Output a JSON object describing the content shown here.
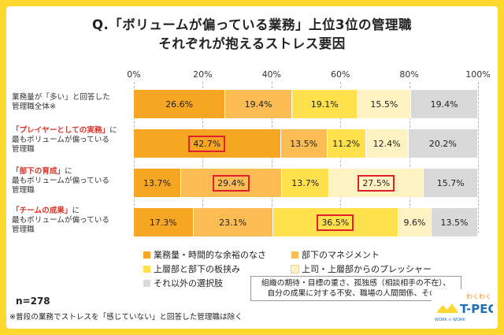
{
  "title": {
    "line1": "Q.「ボリュームが偏っている業務」上位3位の管理職",
    "line2": "それぞれが抱えるストレス要因"
  },
  "chart_data": {
    "type": "bar",
    "orientation": "horizontal-stacked-100",
    "x_ticks": [
      "0%",
      "20%",
      "40%",
      "60%",
      "80%",
      "100%"
    ],
    "xlim": [
      0,
      100
    ],
    "grid": true,
    "categories": [
      {
        "line1": "業務量が「多い」と回答した",
        "line2": "管理職全体※",
        "line3": ""
      },
      {
        "highlight": "「プレイヤーとしての実務」",
        "suffix": "に",
        "line2": "最もボリュームが偏っている",
        "line3": "管理職"
      },
      {
        "highlight": "「部下の育成」",
        "suffix": "に",
        "line2": "最もボリュームが偏っている",
        "line3": "管理職"
      },
      {
        "highlight": "「チームの成果」",
        "suffix": "に",
        "line2": "最もボリュームが偏っている",
        "line3": "管理職"
      }
    ],
    "series": [
      {
        "name": "業務量・時間的な余裕のなさ",
        "color": "#f6a623",
        "values": [
          26.6,
          42.7,
          13.7,
          17.3
        ]
      },
      {
        "name": "部下のマネジメント",
        "color": "#fbbd53",
        "values": [
          19.4,
          13.5,
          29.4,
          23.1
        ]
      },
      {
        "name": "上層部と部下の板挟み",
        "color": "#ffe14d",
        "values": [
          19.1,
          11.2,
          13.7,
          36.5
        ]
      },
      {
        "name": "上司・上層部からのプレッシャー",
        "color": "#fff3c4",
        "values": [
          15.5,
          12.4,
          27.5,
          9.6
        ]
      },
      {
        "name": "それ以外の選択肢",
        "color": "#d9d9d9",
        "values": [
          19.4,
          20.2,
          15.7,
          13.5
        ]
      }
    ],
    "value_labels": [
      [
        "26.6%",
        "19.4%",
        "19.1%",
        "15.5%",
        "19.4%"
      ],
      [
        "42.7%",
        "13.5%",
        "11.2%",
        "12.4%",
        "20.2%"
      ],
      [
        "13.7%",
        "29.4%",
        "13.7%",
        "27.5%",
        "15.7%"
      ],
      [
        "17.3%",
        "23.1%",
        "36.5%",
        "9.6%",
        "13.5%"
      ]
    ],
    "highlighted_cells": [
      [
        1,
        0
      ],
      [
        2,
        1
      ],
      [
        2,
        3
      ],
      [
        3,
        2
      ]
    ]
  },
  "legend_note": {
    "line1": "組織の期待・目標の重さ、孤独感（相談相手の不在）、",
    "line2": "自分の成果に対する不安、職場の人間関係、その他"
  },
  "sample": "n=278",
  "footnote": "※普段の業務でストレスを「感じていない」と回答した管理職は除く",
  "logo": {
    "kana": "わくわく",
    "text": "T-PEC",
    "sub": "WORK × WORK"
  }
}
